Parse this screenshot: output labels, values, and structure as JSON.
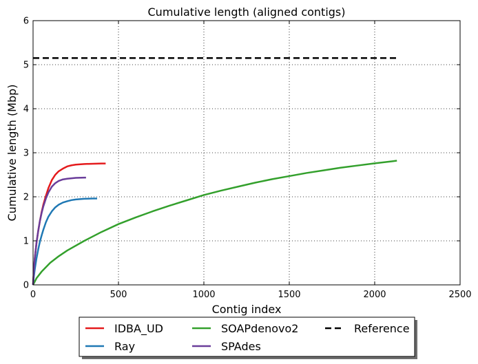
{
  "chart_data": {
    "type": "line",
    "title": "Cumulative length (aligned contigs)",
    "xlabel": "Contig index",
    "ylabel": "Cumulative length (Mbp)",
    "xlim": [
      0,
      2500
    ],
    "ylim": [
      0,
      6
    ],
    "xticks": [
      "0",
      "500",
      "1000",
      "1500",
      "2000",
      "2500"
    ],
    "yticks": [
      "0",
      "1",
      "2",
      "3",
      "4",
      "5",
      "6"
    ],
    "grid": true,
    "legend_position": "below",
    "series": [
      {
        "name": "IDBA_UD",
        "color": "#e41a1c",
        "dash": "solid",
        "points": [
          [
            0,
            0
          ],
          [
            5,
            0.35
          ],
          [
            10,
            0.6
          ],
          [
            20,
            0.95
          ],
          [
            30,
            1.22
          ],
          [
            40,
            1.45
          ],
          [
            50,
            1.65
          ],
          [
            60,
            1.82
          ],
          [
            75,
            2.02
          ],
          [
            90,
            2.2
          ],
          [
            110,
            2.38
          ],
          [
            130,
            2.5
          ],
          [
            150,
            2.58
          ],
          [
            175,
            2.64
          ],
          [
            200,
            2.69
          ],
          [
            225,
            2.715
          ],
          [
            250,
            2.73
          ],
          [
            300,
            2.745
          ],
          [
            350,
            2.75
          ],
          [
            400,
            2.755
          ],
          [
            425,
            2.755
          ]
        ]
      },
      {
        "name": "Ray",
        "color": "#1f78b4",
        "dash": "solid",
        "points": [
          [
            0,
            0
          ],
          [
            5,
            0.2
          ],
          [
            10,
            0.35
          ],
          [
            20,
            0.6
          ],
          [
            30,
            0.8
          ],
          [
            40,
            0.98
          ],
          [
            50,
            1.12
          ],
          [
            60,
            1.25
          ],
          [
            75,
            1.42
          ],
          [
            90,
            1.55
          ],
          [
            110,
            1.67
          ],
          [
            130,
            1.76
          ],
          [
            150,
            1.82
          ],
          [
            175,
            1.87
          ],
          [
            200,
            1.9
          ],
          [
            225,
            1.925
          ],
          [
            250,
            1.94
          ],
          [
            300,
            1.955
          ],
          [
            350,
            1.96
          ],
          [
            375,
            1.96
          ]
        ]
      },
      {
        "name": "SOAPdenovo2",
        "color": "#33a02c",
        "dash": "solid",
        "points": [
          [
            0,
            0
          ],
          [
            20,
            0.15
          ],
          [
            50,
            0.3
          ],
          [
            100,
            0.5
          ],
          [
            150,
            0.65
          ],
          [
            200,
            0.78
          ],
          [
            300,
            1.0
          ],
          [
            400,
            1.2
          ],
          [
            500,
            1.38
          ],
          [
            600,
            1.53
          ],
          [
            700,
            1.67
          ],
          [
            800,
            1.8
          ],
          [
            900,
            1.92
          ],
          [
            1000,
            2.04
          ],
          [
            1100,
            2.14
          ],
          [
            1200,
            2.23
          ],
          [
            1300,
            2.32
          ],
          [
            1400,
            2.4
          ],
          [
            1500,
            2.47
          ],
          [
            1600,
            2.54
          ],
          [
            1700,
            2.6
          ],
          [
            1800,
            2.66
          ],
          [
            1900,
            2.71
          ],
          [
            2000,
            2.76
          ],
          [
            2100,
            2.805
          ],
          [
            2130,
            2.82
          ]
        ]
      },
      {
        "name": "SPAdes",
        "color": "#6a3d9a",
        "dash": "solid",
        "points": [
          [
            0,
            0
          ],
          [
            5,
            0.35
          ],
          [
            10,
            0.6
          ],
          [
            20,
            0.95
          ],
          [
            30,
            1.22
          ],
          [
            40,
            1.45
          ],
          [
            50,
            1.63
          ],
          [
            60,
            1.78
          ],
          [
            75,
            1.96
          ],
          [
            90,
            2.1
          ],
          [
            110,
            2.23
          ],
          [
            130,
            2.31
          ],
          [
            150,
            2.36
          ],
          [
            175,
            2.395
          ],
          [
            200,
            2.41
          ],
          [
            225,
            2.42
          ],
          [
            250,
            2.43
          ],
          [
            300,
            2.435
          ],
          [
            310,
            2.435
          ]
        ]
      },
      {
        "name": "Reference",
        "color": "#000000",
        "dash": "dashed",
        "points": [
          [
            0,
            5.15
          ],
          [
            2130,
            5.15
          ]
        ]
      }
    ],
    "legend": {
      "columns": [
        [
          "IDBA_UD",
          "Ray"
        ],
        [
          "SOAPdenovo2",
          "SPAdes"
        ],
        [
          "Reference"
        ]
      ]
    }
  }
}
